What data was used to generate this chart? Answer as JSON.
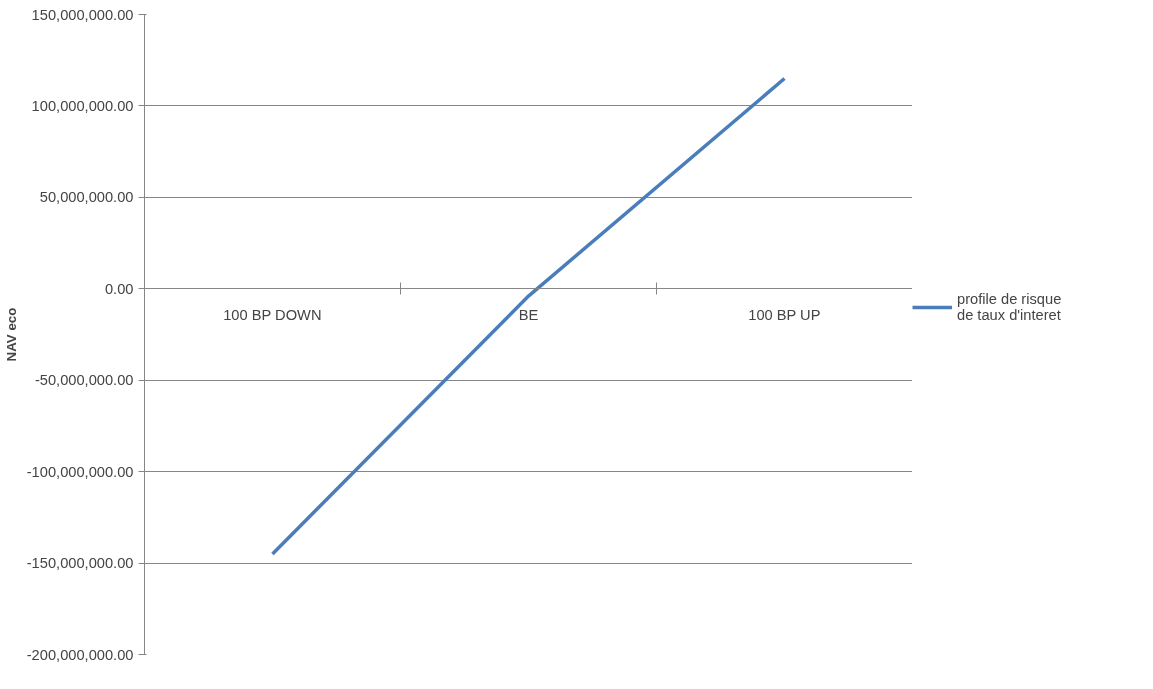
{
  "chart_data": {
    "type": "line",
    "ylabel": "NAV eco",
    "categories": [
      "100 BP DOWN",
      "BE",
      "100 BP UP"
    ],
    "series": [
      {
        "name": "profile de risque de taux d'interet",
        "color": "#4a7ebb",
        "values": [
          -145000000,
          -4000000,
          115000000
        ]
      }
    ],
    "ylim": [
      -200000000,
      150000000
    ],
    "yticks": [
      {
        "value": -200000000,
        "label": "-200,000,000.00"
      },
      {
        "value": -150000000,
        "label": "-150,000,000.00"
      },
      {
        "value": -100000000,
        "label": "-100,000,000.00"
      },
      {
        "value": -50000000,
        "label": "-50,000,000.00"
      },
      {
        "value": 0,
        "label": "0.00"
      },
      {
        "value": 50000000,
        "label": "50,000,000.00"
      },
      {
        "value": 100000000,
        "label": "100,000,000.00"
      },
      {
        "value": 150000000,
        "label": "150,000,000.00"
      }
    ],
    "grid": "y",
    "legend": "right",
    "marker": "none",
    "line_style": "solid"
  }
}
